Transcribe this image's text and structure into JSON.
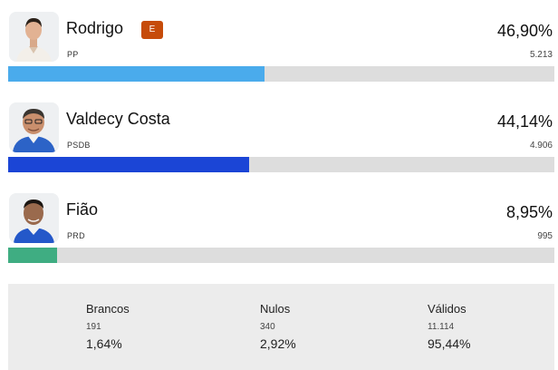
{
  "candidates": [
    {
      "name": "Rodrigo",
      "party": "PP",
      "percent": "46,90%",
      "votes": "5.213",
      "share": 46.9,
      "bar_color": "#4aabec",
      "badge": "E",
      "photo_icon": "candidate-photo-rodrigo"
    },
    {
      "name": "Valdecy Costa",
      "party": "PSDB",
      "percent": "44,14%",
      "votes": "4.906",
      "share": 44.14,
      "bar_color": "#1b45d6",
      "photo_icon": "candidate-photo-valdecy-costa"
    },
    {
      "name": "Fião",
      "party": "PRD",
      "percent": "8,95%",
      "votes": "995",
      "share": 8.95,
      "bar_color": "#3fad82",
      "photo_icon": "candidate-photo-fiao"
    }
  ],
  "summary": {
    "brancos": {
      "label": "Brancos",
      "count": "191",
      "percent": "1,64%"
    },
    "nulos": {
      "label": "Nulos",
      "count": "340",
      "percent": "2,92%"
    },
    "validos": {
      "label": "Válidos",
      "count": "11.114",
      "percent": "95,44%"
    }
  },
  "colors": {
    "elected_badge": "#c64b0a",
    "bar_track": "#dddddd",
    "summary_bg": "#ececec"
  }
}
